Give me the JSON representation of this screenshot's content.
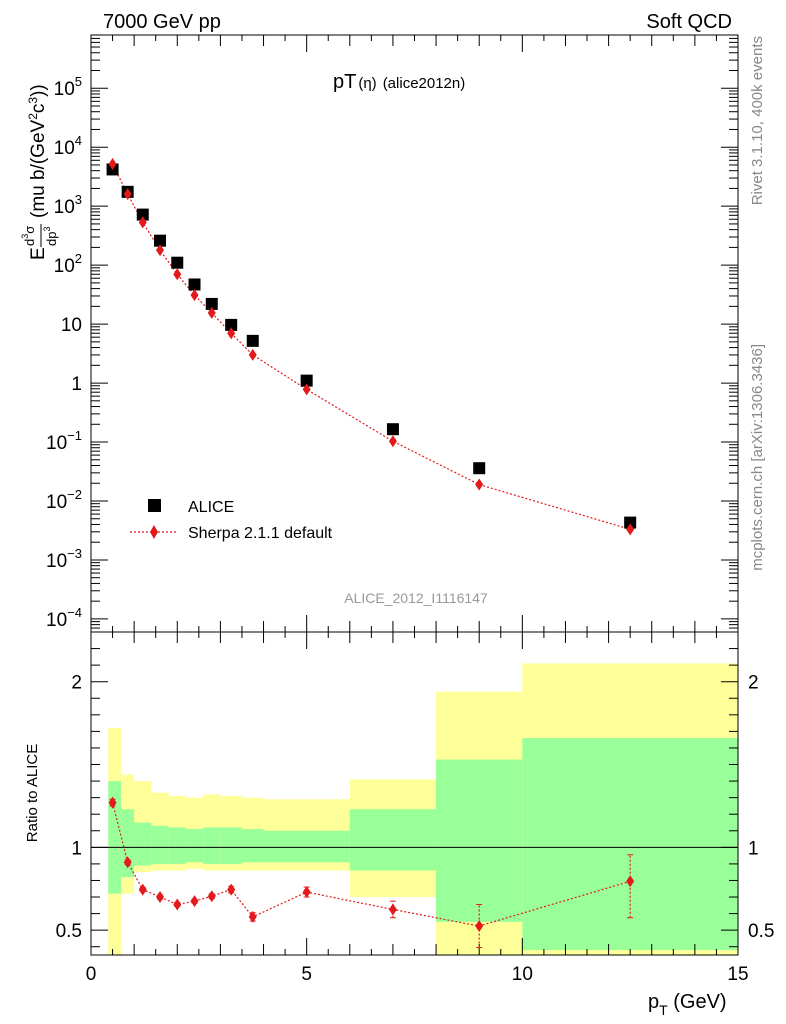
{
  "header": {
    "left": "7000 GeV pp",
    "right": "Soft QCD"
  },
  "side_labels": {
    "rivet": "Rivet 3.1.10,  400k events",
    "mcplots": "mcplots.cern.ch [arXiv:1306.3436]"
  },
  "plot_title": {
    "main": "pT",
    "paren": "(η)",
    "tag": "(alice2012n)"
  },
  "analysis_id": "ALICE_2012_I1116147",
  "legend": {
    "data": "ALICE",
    "mc": "Sherpa 2.1.1 default"
  },
  "axes": {
    "ylabel_main": "E d³σ/dp³ (mu b/(GeV²c³))",
    "ylabel_ratio": "Ratio to ALICE",
    "xlabel": "p_T (GeV)"
  },
  "colors": {
    "data": "#000000",
    "mc": "#e31a1c",
    "band_outer": "#ffff99",
    "band_inner": "#99ff99"
  },
  "chart_data": [
    {
      "type": "scatter",
      "panel": "main",
      "log_y": true,
      "xlim": [
        0,
        15
      ],
      "ylim": [
        6e-05,
        800000
      ],
      "x_ticks": [
        0,
        5,
        10,
        15
      ],
      "y_ticks": [
        {
          "v": 0.0001,
          "base": "10",
          "exp": "−4"
        },
        {
          "v": 0.001,
          "base": "10",
          "exp": "−3"
        },
        {
          "v": 0.01,
          "base": "10",
          "exp": "−2"
        },
        {
          "v": 0.1,
          "base": "10",
          "exp": "−1"
        },
        {
          "v": 1,
          "base": "1",
          "exp": ""
        },
        {
          "v": 10,
          "base": "10",
          "exp": ""
        },
        {
          "v": 100,
          "base": "10",
          "exp": "2"
        },
        {
          "v": 1000,
          "base": "10",
          "exp": "3"
        },
        {
          "v": 10000,
          "base": "10",
          "exp": "4"
        },
        {
          "v": 100000,
          "base": "10",
          "exp": "5"
        }
      ],
      "series": [
        {
          "name": "ALICE",
          "x": [
            0.5,
            0.85,
            1.2,
            1.6,
            2.0,
            2.4,
            2.8,
            3.25,
            3.75,
            5.0,
            7.0,
            9.0,
            12.5
          ],
          "y": [
            4200,
            1750,
            720,
            260,
            110,
            47,
            22,
            9.7,
            5.2,
            1.1,
            0.165,
            0.036,
            0.0043
          ]
        },
        {
          "name": "Sherpa 2.1.1 default",
          "x": [
            0.5,
            0.85,
            1.2,
            1.6,
            2.0,
            2.4,
            2.8,
            3.25,
            3.75,
            5.0,
            7.0,
            9.0,
            12.5
          ],
          "y": [
            5200,
            1600,
            530,
            180,
            70,
            31,
            15.5,
            7.0,
            3.0,
            0.78,
            0.103,
            0.019,
            0.0033
          ]
        }
      ]
    },
    {
      "type": "line",
      "panel": "ratio",
      "xlim": [
        0,
        15
      ],
      "ylim": [
        0.35,
        2.3
      ],
      "y_ticks": [
        0.5,
        1,
        2
      ],
      "reference_line": 1,
      "series": [
        {
          "name": "Sherpa 2.1.1 default",
          "x": [
            0.5,
            0.85,
            1.2,
            1.6,
            2.0,
            2.4,
            2.8,
            3.25,
            3.75,
            5.0,
            7.0,
            9.0,
            12.5
          ],
          "y": [
            1.27,
            0.91,
            0.745,
            0.7,
            0.655,
            0.675,
            0.705,
            0.745,
            0.58,
            0.73,
            0.625,
            0.525,
            0.795
          ],
          "err_lo": [
            0.02,
            0.015,
            0.012,
            0.012,
            0.012,
            0.012,
            0.014,
            0.02,
            0.025,
            0.03,
            0.05,
            0.13,
            0.22
          ],
          "err_hi": [
            0.02,
            0.015,
            0.012,
            0.012,
            0.012,
            0.012,
            0.014,
            0.02,
            0.025,
            0.03,
            0.05,
            0.13,
            0.16
          ]
        }
      ],
      "uncertainty_bands": [
        {
          "x0": 0.4,
          "x1": 0.7,
          "outer": [
            0.32,
            1.72
          ],
          "inner": [
            0.72,
            1.4
          ]
        },
        {
          "x0": 0.7,
          "x1": 1.0,
          "outer": [
            0.72,
            1.44
          ],
          "inner": [
            0.82,
            1.23
          ]
        },
        {
          "x0": 1.0,
          "x1": 1.4,
          "outer": [
            0.85,
            1.4
          ],
          "inner": [
            0.89,
            1.15
          ]
        },
        {
          "x0": 1.4,
          "x1": 1.8,
          "outer": [
            0.86,
            1.33
          ],
          "inner": [
            0.9,
            1.13
          ]
        },
        {
          "x0": 1.8,
          "x1": 2.2,
          "outer": [
            0.86,
            1.31
          ],
          "inner": [
            0.9,
            1.12
          ]
        },
        {
          "x0": 2.2,
          "x1": 2.6,
          "outer": [
            0.87,
            1.3
          ],
          "inner": [
            0.91,
            1.11
          ]
        },
        {
          "x0": 2.6,
          "x1": 3.0,
          "outer": [
            0.86,
            1.32
          ],
          "inner": [
            0.9,
            1.12
          ]
        },
        {
          "x0": 3.0,
          "x1": 3.5,
          "outer": [
            0.86,
            1.31
          ],
          "inner": [
            0.9,
            1.12
          ]
        },
        {
          "x0": 3.5,
          "x1": 4.0,
          "outer": [
            0.86,
            1.3
          ],
          "inner": [
            0.91,
            1.11
          ]
        },
        {
          "x0": 4.0,
          "x1": 6.0,
          "outer": [
            0.86,
            1.29
          ],
          "inner": [
            0.91,
            1.1
          ]
        },
        {
          "x0": 6.0,
          "x1": 8.0,
          "outer": [
            0.7,
            1.41
          ],
          "inner": [
            0.86,
            1.23
          ]
        },
        {
          "x0": 8.0,
          "x1": 10.0,
          "outer": [
            0.23,
            1.94
          ],
          "inner": [
            0.55,
            1.53
          ]
        },
        {
          "x0": 10.0,
          "x1": 15.0,
          "outer": [
            0.3,
            2.11
          ],
          "inner": [
            0.38,
            1.66
          ]
        }
      ]
    }
  ]
}
